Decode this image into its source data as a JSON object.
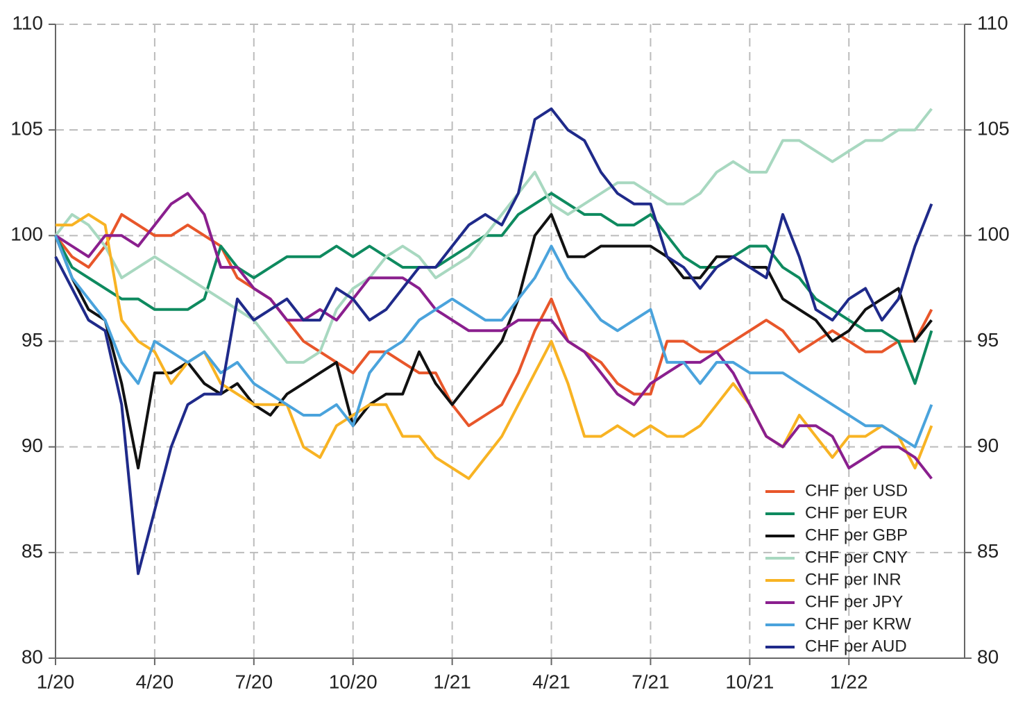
{
  "chart_data": {
    "type": "line",
    "x": [
      0,
      0.5,
      1,
      1.5,
      2,
      2.5,
      3,
      3.5,
      4,
      4.5,
      5,
      5.5,
      6,
      6.5,
      7,
      7.5,
      8,
      8.5,
      9,
      9.5,
      10,
      10.5,
      11,
      11.5,
      12,
      12.5,
      13,
      13.5,
      14,
      14.5,
      15,
      15.5,
      16,
      16.5,
      17,
      17.5,
      18,
      18.5,
      19,
      19.5,
      20,
      20.5,
      21,
      21.5,
      22,
      22.5,
      23,
      23.5,
      24,
      24.5,
      25,
      25.5,
      26,
      26.5
    ],
    "xlim": [
      0,
      27.5
    ],
    "xticks": [
      {
        "value": 0,
        "label": "1/20"
      },
      {
        "value": 3,
        "label": "4/20"
      },
      {
        "value": 6,
        "label": "7/20"
      },
      {
        "value": 9,
        "label": "10/20"
      },
      {
        "value": 12,
        "label": "1/21"
      },
      {
        "value": 15,
        "label": "4/21"
      },
      {
        "value": 18,
        "label": "7/21"
      },
      {
        "value": 21,
        "label": "10/21"
      },
      {
        "value": 24,
        "label": "1/22"
      }
    ],
    "ylim": [
      80,
      110
    ],
    "yticks": [
      80,
      85,
      90,
      95,
      100,
      105,
      110
    ],
    "y2lim": [
      80,
      110
    ],
    "y2ticks": [
      80,
      85,
      90,
      95,
      100,
      105,
      110
    ],
    "grid": true,
    "legend": "lower right",
    "series": [
      {
        "name": "CHF per USD",
        "color": "#e8562a",
        "values": [
          100,
          99,
          98.5,
          99.5,
          101,
          100.5,
          100,
          100,
          100.5,
          100,
          99.5,
          98,
          97.5,
          97,
          96,
          95,
          94.5,
          94,
          93.5,
          94.5,
          94.5,
          94,
          93.5,
          93.5,
          92,
          91,
          91.5,
          92,
          93.5,
          95.5,
          97,
          95,
          94.5,
          94,
          93,
          92.5,
          92.5,
          95,
          95,
          94.5,
          94.5,
          95,
          95.5,
          96,
          95.5,
          94.5,
          95,
          95.5,
          95,
          94.5,
          94.5,
          95,
          95,
          96.5
        ]
      },
      {
        "name": "CHF per EUR",
        "color": "#0e8a5f",
        "values": [
          100,
          98.5,
          98,
          97.5,
          97,
          97,
          96.5,
          96.5,
          96.5,
          97,
          99.5,
          98.5,
          98,
          98.5,
          99,
          99,
          99,
          99.5,
          99,
          99.5,
          99,
          98.5,
          98.5,
          98.5,
          99,
          99.5,
          100,
          100,
          101,
          101.5,
          102,
          101.5,
          101,
          101,
          100.5,
          100.5,
          101,
          100,
          99,
          98.5,
          98.5,
          99,
          99.5,
          99.5,
          98.5,
          98,
          97,
          96.5,
          96,
          95.5,
          95.5,
          95,
          93,
          95.5
        ]
      },
      {
        "name": "CHF per GBP",
        "color": "#111111",
        "values": [
          100,
          98,
          96.5,
          96,
          93,
          89,
          93.5,
          93.5,
          94,
          93,
          92.5,
          93,
          92,
          91.5,
          92.5,
          93,
          93.5,
          94,
          91,
          92,
          92.5,
          92.5,
          94.5,
          93,
          92,
          93,
          94,
          95,
          97,
          100,
          101,
          99,
          99,
          99.5,
          99.5,
          99.5,
          99.5,
          99,
          98,
          98,
          99,
          99,
          98.5,
          98.5,
          97,
          96.5,
          96,
          95,
          95.5,
          96.5,
          97,
          97.5,
          95,
          96
        ]
      },
      {
        "name": "CHF per CNY",
        "color": "#a8d8c0",
        "values": [
          100,
          101,
          100.5,
          99.5,
          98,
          98.5,
          99,
          98.5,
          98,
          97.5,
          97,
          96.5,
          96,
          95,
          94,
          94,
          94.5,
          96.5,
          97.5,
          98,
          99,
          99.5,
          99,
          98,
          98.5,
          99,
          100,
          101,
          102,
          103,
          101.5,
          101,
          101.5,
          102,
          102.5,
          102.5,
          102,
          101.5,
          101.5,
          102,
          103,
          103.5,
          103,
          103,
          104.5,
          104.5,
          104,
          103.5,
          104,
          104.5,
          104.5,
          105,
          105,
          106
        ]
      },
      {
        "name": "CHF per INR",
        "color": "#f8b323",
        "values": [
          100.5,
          100.5,
          101,
          100.5,
          96,
          95,
          94.5,
          93,
          94,
          94.5,
          93,
          92.5,
          92,
          92,
          92,
          90,
          89.5,
          91,
          91.5,
          92,
          92,
          90.5,
          90.5,
          89.5,
          89,
          88.5,
          89.5,
          90.5,
          92,
          93.5,
          95,
          93,
          90.5,
          90.5,
          91,
          90.5,
          91,
          90.5,
          90.5,
          91,
          92,
          93,
          92,
          90.5,
          90,
          91.5,
          90.5,
          89.5,
          90.5,
          90.5,
          91,
          90.5,
          89,
          91
        ]
      },
      {
        "name": "CHF per JPY",
        "color": "#8a1f8e",
        "values": [
          100,
          99.5,
          99,
          100,
          100,
          99.5,
          100.5,
          101.5,
          102,
          101,
          98.5,
          98.5,
          97.5,
          97,
          96,
          96,
          96.5,
          96,
          97,
          98,
          98,
          98,
          97.5,
          96.5,
          96,
          95.5,
          95.5,
          95.5,
          96,
          96,
          96,
          95,
          94.5,
          93.5,
          92.5,
          92,
          93,
          93.5,
          94,
          94,
          94.5,
          93.5,
          92,
          90.5,
          90,
          91,
          91,
          90.5,
          89,
          89.5,
          90,
          90,
          89.5,
          88.5
        ]
      },
      {
        "name": "CHF per KRW",
        "color": "#4aa3dc",
        "values": [
          100,
          98,
          97,
          96,
          94,
          93,
          95,
          94.5,
          94,
          94.5,
          93.5,
          94,
          93,
          92.5,
          92,
          91.5,
          91.5,
          92,
          91,
          93.5,
          94.5,
          95,
          96,
          96.5,
          97,
          96.5,
          96,
          96,
          97,
          98,
          99.5,
          98,
          97,
          96,
          95.5,
          96,
          96.5,
          94,
          94,
          93,
          94,
          94,
          93.5,
          93.5,
          93.5,
          93,
          92.5,
          92,
          91.5,
          91,
          91,
          90.5,
          90,
          92
        ]
      },
      {
        "name": "CHF per AUD",
        "color": "#1f2a8a",
        "values": [
          99,
          97.5,
          96,
          95.5,
          92,
          84,
          87,
          90,
          92,
          92.5,
          92.5,
          97,
          96,
          96.5,
          97,
          96,
          96,
          97.5,
          97,
          96,
          96.5,
          97.5,
          98.5,
          98.5,
          99.5,
          100.5,
          101,
          100.5,
          102,
          105.5,
          106,
          105,
          104.5,
          103,
          102,
          101.5,
          101.5,
          99,
          98.5,
          97.5,
          98.5,
          99,
          98.5,
          98,
          101,
          99,
          96.5,
          96,
          97,
          97.5,
          96,
          97,
          99.5,
          101.5
        ]
      }
    ]
  }
}
